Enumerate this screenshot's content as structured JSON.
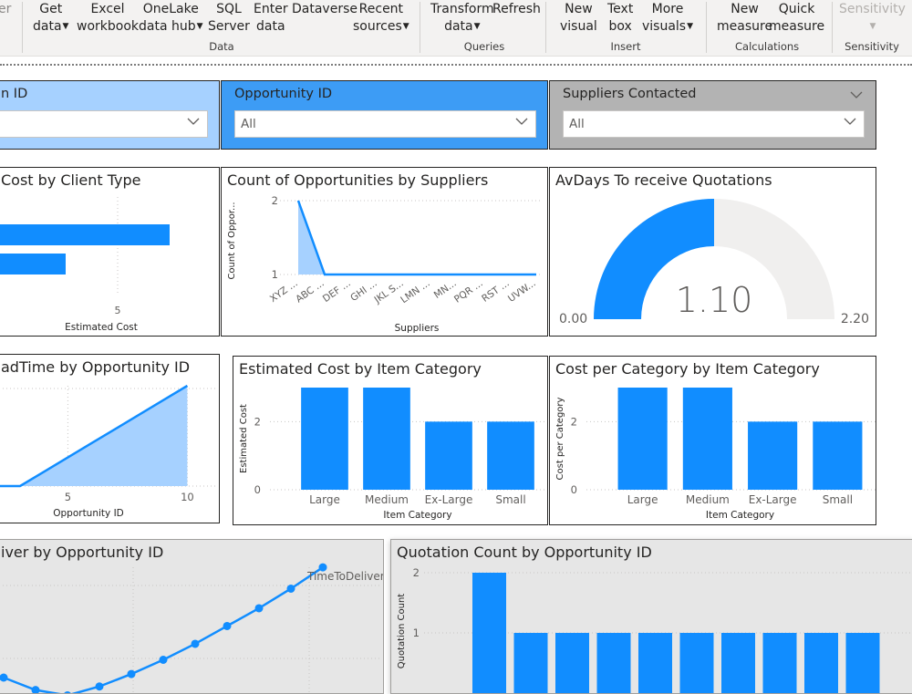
{
  "ribbon": {
    "buttons": [
      {
        "id": "clipped-left",
        "line1": "",
        "line2": "er"
      },
      {
        "id": "get-data",
        "line1": "Get",
        "line2": "data",
        "dropdown": true
      },
      {
        "id": "excel-workbook",
        "line1": "Excel",
        "line2": "workbook"
      },
      {
        "id": "onelake-data-hub",
        "line1": "OneLake",
        "line2": "data hub",
        "dropdown": true
      },
      {
        "id": "sql-server",
        "line1": "SQL",
        "line2": "Server"
      },
      {
        "id": "enter-data",
        "line1": "Enter",
        "line2": "data"
      },
      {
        "id": "dataverse",
        "line1": "Dataverse",
        "line2": ""
      },
      {
        "id": "recent-sources",
        "line1": "Recent",
        "line2": "sources",
        "dropdown": true
      },
      {
        "id": "transform-data",
        "line1": "Transform",
        "line2": "data",
        "dropdown": true
      },
      {
        "id": "refresh",
        "line1": "Refresh",
        "line2": ""
      },
      {
        "id": "new-visual",
        "line1": "New",
        "line2": "visual"
      },
      {
        "id": "text-box",
        "line1": "Text",
        "line2": "box"
      },
      {
        "id": "more-visuals",
        "line1": "More",
        "line2": "visuals",
        "dropdown": true
      },
      {
        "id": "new-measure",
        "line1": "New",
        "line2": "measure"
      },
      {
        "id": "quick-measure",
        "line1": "Quick",
        "line2": "measure"
      },
      {
        "id": "sensitivity",
        "line1": "Sensitivity",
        "line2": "",
        "dropdown": true,
        "disabled": true
      }
    ],
    "groups": [
      "Data",
      "Queries",
      "Insert",
      "Calculations",
      "Sensitivity"
    ]
  },
  "slicers": [
    {
      "id": "client",
      "title": "n ID",
      "value": "",
      "bg": "#a6d1ff"
    },
    {
      "id": "opportunity",
      "title": "Opportunity ID",
      "value": "All",
      "bg": "#3d9cf5"
    },
    {
      "id": "suppliers",
      "title": "Suppliers Contacted",
      "value": "All",
      "bg": "#b3b3b3"
    }
  ],
  "visuals": {
    "cost_by_client": {
      "title": "Cost by Client Type",
      "xlabel": "Estimated Cost",
      "tick": "5"
    },
    "count_opps": {
      "title": "Count of Opportunities by Suppliers",
      "ylabel": "Count of Oppor...",
      "xlabel": "Suppliers",
      "yticks": [
        "2",
        "1"
      ]
    },
    "avdays": {
      "title": "AvDays To receive Quotations",
      "value": "1.10",
      "min": "0.00",
      "max": "2.20"
    },
    "leadtime": {
      "title": "adTime by Opportunity ID",
      "xlabel": "Opportunity ID",
      "xticks": [
        "5",
        "10"
      ]
    },
    "est_cost_cat": {
      "title": "Estimated Cost by Item Category",
      "ylabel": "Estimated Cost",
      "xlabel": "Item Category",
      "yticks": [
        "2",
        "0"
      ]
    },
    "cost_per_cat": {
      "title": "Cost per Category by Item Category",
      "ylabel": "Cost per Category",
      "xlabel": "Item Category",
      "yticks": [
        "2",
        "0"
      ]
    },
    "time_deliver": {
      "title": "iver by Opportunity ID",
      "legend": "TimeToDeliver"
    },
    "quote_count": {
      "title": "Quotation Count by Opportunity ID",
      "ylabel": "Quotation Count",
      "yticks": [
        "2",
        "1"
      ]
    }
  },
  "chart_data": [
    {
      "type": "bar",
      "title": "Cost by Client Type",
      "xlabel": "Estimated Cost",
      "orientation": "horizontal",
      "categories": [
        "",
        ""
      ],
      "values": [
        6.5,
        3.5
      ],
      "color": "#118dff"
    },
    {
      "type": "area",
      "title": "Count of Opportunities by Suppliers",
      "xlabel": "Suppliers",
      "ylabel": "Count of Oppor...",
      "categories": [
        "XYZ ...",
        "ABC ...",
        "DEF ...",
        "GHI ...",
        "JKL S...",
        "LMN ...",
        "MN...",
        "PQR ...",
        "RST ...",
        "UVW..."
      ],
      "values": [
        2,
        1,
        1,
        1,
        1,
        1,
        1,
        1,
        1,
        1
      ],
      "ylim": [
        1,
        2
      ],
      "color": "#118dff"
    },
    {
      "type": "gauge",
      "title": "AvDays To receive Quotations",
      "value": 1.1,
      "min": 0.0,
      "max": 2.2,
      "color": "#118dff"
    },
    {
      "type": "area",
      "title": "adTime by Opportunity ID",
      "xlabel": "Opportunity ID",
      "x": [
        1,
        2,
        3,
        4,
        5,
        6,
        7,
        8,
        9,
        10
      ],
      "values": [
        0,
        0,
        0,
        1,
        2,
        3,
        4,
        5,
        6,
        7
      ],
      "xticks": [
        5,
        10
      ],
      "color": "#118dff"
    },
    {
      "type": "bar",
      "title": "Estimated Cost by Item Category",
      "xlabel": "Item Category",
      "ylabel": "Estimated Cost",
      "categories": [
        "Large",
        "Medium",
        "Ex-Large",
        "Small"
      ],
      "values": [
        3,
        3,
        2,
        2
      ],
      "ylim": [
        0,
        3
      ],
      "color": "#118dff"
    },
    {
      "type": "bar",
      "title": "Cost per Category by Item Category",
      "xlabel": "Item Category",
      "ylabel": "Cost per Category",
      "categories": [
        "Large",
        "Medium",
        "Ex-Large",
        "Small"
      ],
      "values": [
        3,
        3,
        2,
        2
      ],
      "ylim": [
        0,
        3
      ],
      "color": "#118dff"
    },
    {
      "type": "line",
      "title": "iver by Opportunity ID",
      "series": [
        {
          "name": "TimeToDeliver",
          "values": [
            2.5,
            2.0,
            1.3,
            1.0,
            1.5,
            2.2,
            3.0,
            3.9,
            4.9,
            5.9,
            7.0,
            8.2
          ]
        }
      ],
      "color": "#118dff"
    },
    {
      "type": "bar",
      "title": "Quotation Count by Opportunity ID",
      "ylabel": "Quotation Count",
      "categories": [
        "",
        "",
        "",
        "",
        "",
        "",
        "",
        "",
        "",
        ""
      ],
      "values": [
        2,
        1,
        1,
        1,
        1,
        1,
        1,
        1,
        1,
        1
      ],
      "ylim": [
        0,
        2
      ],
      "color": "#118dff"
    }
  ]
}
